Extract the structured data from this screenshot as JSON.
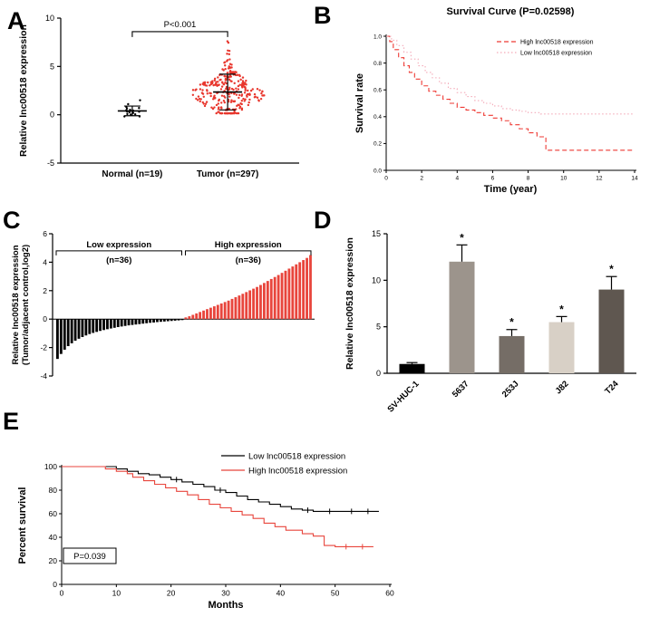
{
  "panels": [
    {
      "label": "A"
    },
    {
      "label": "B"
    },
    {
      "label": "C"
    },
    {
      "label": "D"
    },
    {
      "label": "E"
    }
  ],
  "chart_data": [
    {
      "id": "A",
      "type": "scatter",
      "ylabel": "Relative lnc00518 expression",
      "ylim": [
        -5,
        10
      ],
      "yticks": [
        -5,
        0,
        5,
        10
      ],
      "yticklabels": [
        "-5",
        "0",
        "5",
        "10"
      ],
      "comparison": {
        "label": "P<0.001",
        "y": 8.6
      },
      "groups": [
        {
          "label": "Normal (n=19)",
          "n": 19,
          "mean": 0.4,
          "sd": 0.5,
          "clip": [
            -0.6,
            1.5
          ],
          "color": "#000000"
        },
        {
          "label": "Tumor (n=297)",
          "n": 297,
          "mean": 2.35,
          "sd": 1.85,
          "clip": [
            0.15,
            7.6
          ],
          "color": "#e8362d"
        }
      ]
    },
    {
      "id": "B",
      "type": "km",
      "title": "Survival Curve (P=0.02598)",
      "xlabel": "Time (year)",
      "ylabel": "Survival rate",
      "xlim": [
        0,
        14
      ],
      "ylim": [
        0,
        1.0
      ],
      "xticks": [
        0,
        2,
        4,
        6,
        8,
        10,
        12,
        14
      ],
      "xticklabels": [
        "0",
        "2",
        "4",
        "6",
        "8",
        "10",
        "12",
        "14"
      ],
      "yticks": [
        0,
        0.2,
        0.4,
        0.6,
        0.8,
        1.0
      ],
      "yticklabels": [
        "0.0",
        "0.2",
        "0.4",
        "0.6",
        "0.8",
        "1.0"
      ],
      "series": [
        {
          "name": "High lnc00518 expression",
          "color": "#ee3a34",
          "dash": "5,3",
          "points": [
            [
              0,
              1
            ],
            [
              0.2,
              0.96
            ],
            [
              0.4,
              0.9
            ],
            [
              0.7,
              0.84
            ],
            [
              1,
              0.78
            ],
            [
              1.3,
              0.73
            ],
            [
              1.6,
              0.68
            ],
            [
              2,
              0.63
            ],
            [
              2.4,
              0.59
            ],
            [
              2.8,
              0.56
            ],
            [
              3.2,
              0.53
            ],
            [
              3.6,
              0.5
            ],
            [
              4,
              0.47
            ],
            [
              4.5,
              0.45
            ],
            [
              5,
              0.43
            ],
            [
              5.5,
              0.41
            ],
            [
              6,
              0.39
            ],
            [
              6.5,
              0.37
            ],
            [
              7,
              0.34
            ],
            [
              7.5,
              0.31
            ],
            [
              8,
              0.28
            ],
            [
              8.5,
              0.25
            ],
            [
              9,
              0.15
            ],
            [
              14,
              0.15
            ]
          ]
        },
        {
          "name": "Low lnc00518 expression",
          "color": "#f4abb9",
          "dash": "1.5,2.5",
          "points": [
            [
              0,
              1
            ],
            [
              0.3,
              0.97
            ],
            [
              0.6,
              0.93
            ],
            [
              1,
              0.88
            ],
            [
              1.4,
              0.83
            ],
            [
              1.8,
              0.78
            ],
            [
              2.2,
              0.73
            ],
            [
              2.6,
              0.69
            ],
            [
              3,
              0.65
            ],
            [
              3.5,
              0.61
            ],
            [
              4,
              0.58
            ],
            [
              4.5,
              0.55
            ],
            [
              5,
              0.52
            ],
            [
              5.5,
              0.5
            ],
            [
              6,
              0.48
            ],
            [
              6.5,
              0.46
            ],
            [
              7,
              0.45
            ],
            [
              7.5,
              0.44
            ],
            [
              8,
              0.43
            ],
            [
              8.7,
              0.42
            ],
            [
              14,
              0.42
            ]
          ]
        }
      ]
    },
    {
      "id": "C",
      "type": "waterfall",
      "ylabel": "Relative lnc00518 expression",
      "ylabel2": "(Tumor/adjacent control,log2)",
      "ylim": [
        -4,
        6
      ],
      "yticks": [
        -4,
        -2,
        0,
        2,
        4,
        6
      ],
      "yticklabels": [
        "-4",
        "-2",
        "0",
        "2",
        "4",
        "6"
      ],
      "bracket_y": 4.8,
      "groups": [
        {
          "label": "Low expression",
          "sub": "(n=36)",
          "color": "#000000"
        },
        {
          "label": "High expression",
          "sub": "(n=36)",
          "color": "#e8453c"
        }
      ],
      "values": [
        -2.8,
        -2.45,
        -2.15,
        -1.9,
        -1.7,
        -1.52,
        -1.38,
        -1.26,
        -1.15,
        -1.05,
        -0.97,
        -0.9,
        -0.83,
        -0.77,
        -0.71,
        -0.66,
        -0.61,
        -0.56,
        -0.52,
        -0.48,
        -0.44,
        -0.41,
        -0.38,
        -0.35,
        -0.32,
        -0.29,
        -0.26,
        -0.24,
        -0.21,
        -0.19,
        -0.17,
        -0.15,
        -0.13,
        -0.11,
        -0.09,
        -0.07,
        0.12,
        0.2,
        0.3,
        0.4,
        0.5,
        0.6,
        0.7,
        0.8,
        0.9,
        1.0,
        1.1,
        1.2,
        1.3,
        1.42,
        1.54,
        1.66,
        1.78,
        1.9,
        2.02,
        2.14,
        2.26,
        2.4,
        2.54,
        2.68,
        2.82,
        2.96,
        3.1,
        3.25,
        3.4,
        3.55,
        3.7,
        3.85,
        4.0,
        4.15,
        4.3,
        4.5
      ]
    },
    {
      "id": "D",
      "type": "bar",
      "ylabel": "Relative lnc00518 expression",
      "categories": [
        "SV-HUC-1",
        "5637",
        "253J",
        "J82",
        "T24"
      ],
      "values": [
        1,
        12,
        4,
        5.5,
        9
      ],
      "errors": [
        0.15,
        1.8,
        0.7,
        0.6,
        1.4
      ],
      "sig": [
        "",
        "*",
        "*",
        "*",
        "*"
      ],
      "colors": [
        "#000000",
        "#9c948c",
        "#756d66",
        "#d8d0c6",
        "#5f5750"
      ],
      "ylim": [
        0,
        15
      ],
      "yticks": [
        0,
        5,
        10,
        15
      ],
      "yticklabels": [
        "0",
        "5",
        "10",
        "15"
      ]
    },
    {
      "id": "E",
      "type": "km",
      "xlabel": "Months",
      "ylabel": "Percent survival",
      "xlim": [
        0,
        60
      ],
      "ylim": [
        0,
        100
      ],
      "xticks": [
        0,
        10,
        20,
        30,
        40,
        50,
        60
      ],
      "xticklabels": [
        "0",
        "10",
        "20",
        "30",
        "40",
        "50",
        "60"
      ],
      "yticks": [
        0,
        20,
        40,
        60,
        80,
        100
      ],
      "yticklabels": [
        "0",
        "20",
        "40",
        "60",
        "80",
        "100"
      ],
      "pvalue": "P=0.039",
      "series": [
        {
          "name": "Low lnc00518 expression",
          "color": "#000000",
          "points": [
            [
              0,
              100
            ],
            [
              10,
              98
            ],
            [
              12,
              96
            ],
            [
              14,
              94
            ],
            [
              16,
              93
            ],
            [
              18,
              91
            ],
            [
              20,
              89
            ],
            [
              22,
              87
            ],
            [
              24,
              85
            ],
            [
              26,
              83
            ],
            [
              28,
              80
            ],
            [
              30,
              78
            ],
            [
              32,
              75
            ],
            [
              34,
              72
            ],
            [
              36,
              70
            ],
            [
              38,
              68
            ],
            [
              40,
              66
            ],
            [
              42,
              64
            ],
            [
              44,
              63
            ],
            [
              46,
              62
            ],
            [
              58,
              62
            ]
          ],
          "censors": [
            21,
            29,
            45,
            49,
            53,
            56
          ]
        },
        {
          "name": "High lnc00518 expression",
          "color": "#e8453c",
          "points": [
            [
              0,
              100
            ],
            [
              8,
              98
            ],
            [
              10,
              96
            ],
            [
              12,
              94
            ],
            [
              13,
              91
            ],
            [
              15,
              88
            ],
            [
              17,
              85
            ],
            [
              19,
              82
            ],
            [
              21,
              79
            ],
            [
              23,
              76
            ],
            [
              25,
              72
            ],
            [
              27,
              68
            ],
            [
              29,
              65
            ],
            [
              31,
              62
            ],
            [
              33,
              59
            ],
            [
              35,
              56
            ],
            [
              37,
              52
            ],
            [
              39,
              49
            ],
            [
              41,
              46
            ],
            [
              44,
              43
            ],
            [
              46,
              41
            ],
            [
              48,
              33
            ],
            [
              50,
              32
            ],
            [
              57,
              32
            ]
          ],
          "censors": [
            52,
            55
          ]
        }
      ]
    }
  ]
}
